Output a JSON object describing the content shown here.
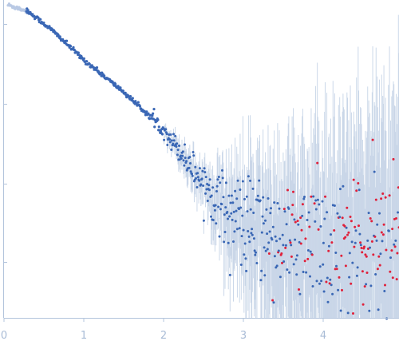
{
  "chart_data": {
    "type": "scatter",
    "title": "",
    "xlabel": "",
    "ylabel": "",
    "xlim": [
      0,
      4.95
    ],
    "ylog": true,
    "x_ticks": [
      0,
      1,
      2,
      3,
      4
    ],
    "x_tick_labels": [
      "0",
      "1",
      "2",
      "3",
      "4"
    ],
    "y_tick_count": 4,
    "grid": false,
    "legend": "none",
    "colors": {
      "main": "#3a67b5",
      "outlier": "#e0203a",
      "lowq": "#b9c9e4",
      "errorbar": "#c6d4e7",
      "axis": "#b3c4dc"
    },
    "curve_anchors": [
      [
        0.0,
        2.9
      ],
      [
        0.3,
        2.8
      ],
      [
        0.6,
        2.55
      ],
      [
        1.0,
        2.15
      ],
      [
        1.5,
        1.72
      ],
      [
        2.0,
        1.22
      ],
      [
        2.4,
        0.65
      ],
      [
        2.7,
        0.25
      ],
      [
        3.0,
        -0.05
      ],
      [
        3.3,
        -0.2
      ],
      [
        3.8,
        -0.35
      ],
      [
        4.3,
        -0.35
      ],
      [
        4.95,
        -0.25
      ]
    ],
    "log_intensity_range": [
      -1.3,
      2.95
    ],
    "q_min": 0.05,
    "q_lowq_end": 0.28,
    "q_max": 4.95,
    "point_count": 700,
    "outlier_start_q": 3.3
  }
}
